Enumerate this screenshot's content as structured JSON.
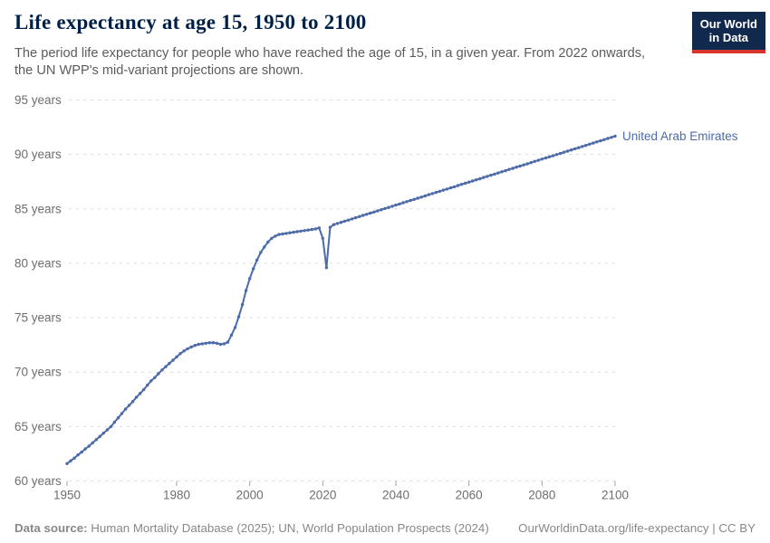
{
  "header": {
    "title": "Life expectancy at age 15, 1950 to 2100",
    "subtitle": "The period life expectancy for people who have reached the age of 15, in a given year. From 2022 onwards, the UN WPP's mid-variant projections are shown.",
    "logo": {
      "line1": "Our World",
      "line2": "in Data",
      "bg_color": "#12294e",
      "bar_color": "#d8352e"
    }
  },
  "footer": {
    "data_source_label": "Data source:",
    "data_source_text": " Human Mortality Database (2025); UN, World Population Prospects (2024)",
    "credit": "OurWorldinData.org/life-expectancy | CC BY"
  },
  "chart_data": {
    "type": "line",
    "title": "Life expectancy at age 15, 1950 to 2100",
    "xlabel": "",
    "ylabel": "",
    "unit": "years",
    "xlim": [
      1950,
      2100
    ],
    "ylim": [
      60,
      95
    ],
    "grid": "horizontal-dashed",
    "legend_position": "end-of-line-label",
    "x_ticks": [
      1950,
      1980,
      2000,
      2020,
      2040,
      2060,
      2080,
      2100
    ],
    "y_ticks": [
      {
        "value": 60,
        "label": "60 years"
      },
      {
        "value": 65,
        "label": "65 years"
      },
      {
        "value": 70,
        "label": "70 years"
      },
      {
        "value": 75,
        "label": "75 years"
      },
      {
        "value": 80,
        "label": "80 years"
      },
      {
        "value": 85,
        "label": "85 years"
      },
      {
        "value": 90,
        "label": "90 years"
      },
      {
        "value": 95,
        "label": "95 years"
      }
    ],
    "annotations": {
      "projection_note": "From 2022 onwards, UN WPP mid-variant projections"
    },
    "series": [
      {
        "name": "United Arab Emirates",
        "color": "#4c6ba8",
        "x": [
          1950,
          1951,
          1952,
          1953,
          1954,
          1955,
          1956,
          1957,
          1958,
          1959,
          1960,
          1961,
          1962,
          1963,
          1964,
          1965,
          1966,
          1967,
          1968,
          1969,
          1970,
          1971,
          1972,
          1973,
          1974,
          1975,
          1976,
          1977,
          1978,
          1979,
          1980,
          1981,
          1982,
          1983,
          1984,
          1985,
          1986,
          1987,
          1988,
          1989,
          1990,
          1991,
          1992,
          1993,
          1994,
          1995,
          1996,
          1997,
          1998,
          1999,
          2000,
          2001,
          2002,
          2003,
          2004,
          2005,
          2006,
          2007,
          2008,
          2009,
          2010,
          2011,
          2012,
          2013,
          2014,
          2015,
          2016,
          2017,
          2018,
          2019,
          2020,
          2021,
          2022,
          2023,
          2024,
          2025,
          2026,
          2027,
          2028,
          2029,
          2030,
          2031,
          2032,
          2033,
          2034,
          2035,
          2036,
          2037,
          2038,
          2039,
          2040,
          2041,
          2042,
          2043,
          2044,
          2045,
          2046,
          2047,
          2048,
          2049,
          2050,
          2051,
          2052,
          2053,
          2054,
          2055,
          2056,
          2057,
          2058,
          2059,
          2060,
          2061,
          2062,
          2063,
          2064,
          2065,
          2066,
          2067,
          2068,
          2069,
          2070,
          2071,
          2072,
          2073,
          2074,
          2075,
          2076,
          2077,
          2078,
          2079,
          2080,
          2081,
          2082,
          2083,
          2084,
          2085,
          2086,
          2087,
          2088,
          2089,
          2090,
          2091,
          2092,
          2093,
          2094,
          2095,
          2096,
          2097,
          2098,
          2099,
          2100
        ],
        "values": [
          61.6,
          61.85,
          62.1,
          62.4,
          62.65,
          62.95,
          63.2,
          63.5,
          63.8,
          64.1,
          64.4,
          64.7,
          65.0,
          65.4,
          65.8,
          66.2,
          66.6,
          66.95,
          67.3,
          67.7,
          68.05,
          68.4,
          68.8,
          69.2,
          69.5,
          69.85,
          70.2,
          70.5,
          70.8,
          71.1,
          71.4,
          71.7,
          71.95,
          72.15,
          72.3,
          72.45,
          72.55,
          72.6,
          72.65,
          72.7,
          72.7,
          72.65,
          72.55,
          72.6,
          72.75,
          73.4,
          74.1,
          75.1,
          76.2,
          77.5,
          78.6,
          79.5,
          80.3,
          81.0,
          81.5,
          81.95,
          82.3,
          82.5,
          82.65,
          82.7,
          82.75,
          82.8,
          82.85,
          82.9,
          82.95,
          83.0,
          83.05,
          83.1,
          83.15,
          83.25,
          82.3,
          79.6,
          83.3,
          83.55,
          83.66,
          83.76,
          83.87,
          83.97,
          84.08,
          84.18,
          84.29,
          84.4,
          84.5,
          84.61,
          84.71,
          84.82,
          84.92,
          85.03,
          85.13,
          85.24,
          85.35,
          85.45,
          85.56,
          85.66,
          85.77,
          85.87,
          85.98,
          86.08,
          86.19,
          86.3,
          86.4,
          86.51,
          86.61,
          86.72,
          86.82,
          86.93,
          87.03,
          87.14,
          87.25,
          87.35,
          87.46,
          87.56,
          87.67,
          87.77,
          87.88,
          87.98,
          88.09,
          88.19,
          88.3,
          88.41,
          88.51,
          88.62,
          88.72,
          88.83,
          88.93,
          89.04,
          89.14,
          89.25,
          89.36,
          89.46,
          89.57,
          89.67,
          89.78,
          89.88,
          89.99,
          90.09,
          90.2,
          90.3,
          90.41,
          90.52,
          90.62,
          90.73,
          90.83,
          90.94,
          91.04,
          91.15,
          91.25,
          91.36,
          91.47,
          91.57,
          91.68
        ]
      }
    ]
  }
}
